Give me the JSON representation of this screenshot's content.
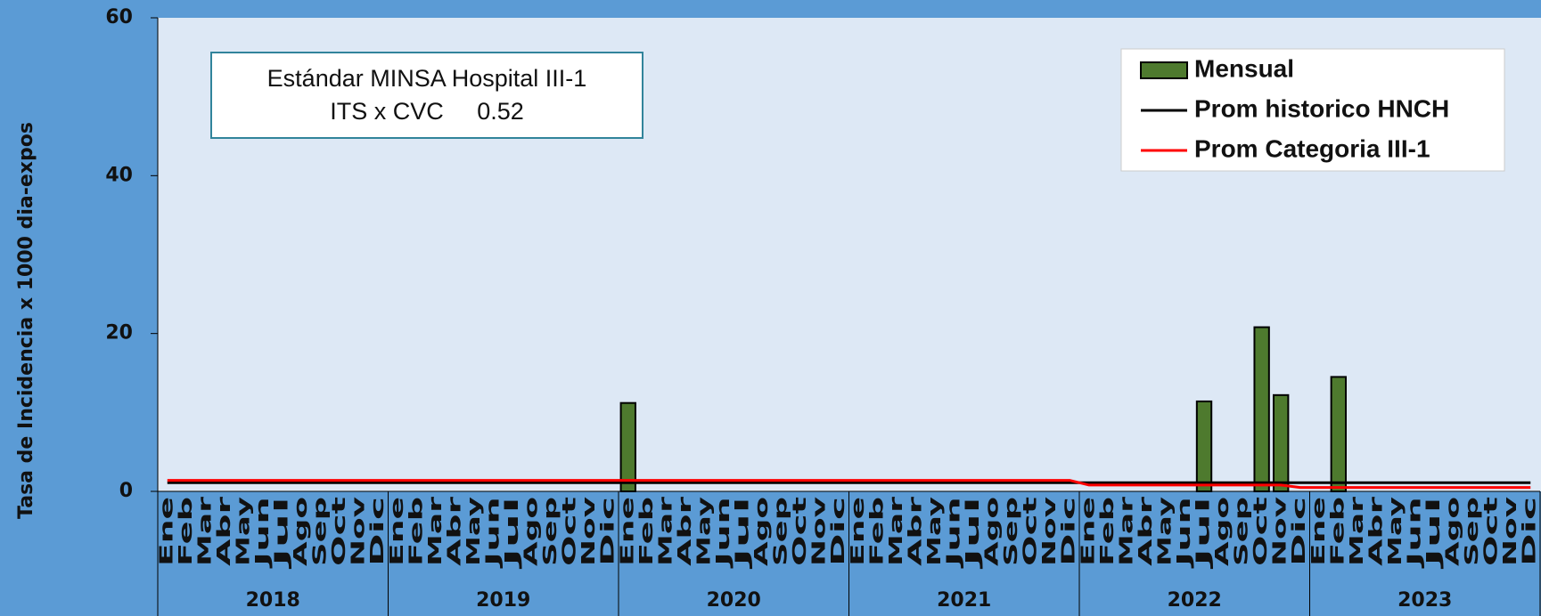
{
  "chart_data": {
    "type": "bar",
    "ylabel": "Tasa de Incidencia x 1000 dia-expos",
    "annotation": [
      "Estándar MINSA Hospital III-1",
      "ITS x CVC     0.52"
    ],
    "categories": [
      "Ene",
      "Feb",
      "Mar",
      "Abr",
      "May",
      "Jun",
      "Jul",
      "Ago",
      "Sep",
      "Oct",
      "Nov",
      "Dic",
      "Ene",
      "Feb",
      "Mar",
      "Abr",
      "May",
      "Jun",
      "Jul",
      "Ago",
      "Sep",
      "Oct",
      "Nov",
      "Dic",
      "Ene",
      "Feb",
      "Mar",
      "Abr",
      "May",
      "Jun",
      "Jul",
      "Ago",
      "Sep",
      "Oct",
      "Nov",
      "Dic",
      "Ene",
      "Feb",
      "Mar",
      "Abr",
      "May",
      "Jun",
      "Jul",
      "Ago",
      "Sep",
      "Oct",
      "Nov",
      "Dic",
      "Ene",
      "Feb",
      "Mar",
      "Abr",
      "May",
      "Jun",
      "Jul",
      "Ago",
      "Sep",
      "Oct",
      "Nov",
      "Dic",
      "Ene",
      "Feb",
      "Mar",
      "Abr",
      "May",
      "Jun",
      "Jul",
      "Ago",
      "Sep",
      "Oct",
      "Nov",
      "Dic"
    ],
    "years": [
      "2018",
      "2019",
      "2020",
      "2021",
      "2022",
      "2023"
    ],
    "series": [
      {
        "name": "Mensual",
        "type": "bar",
        "color": "#4e7a2e",
        "values": [
          0,
          0,
          0,
          0,
          0,
          0,
          0,
          0,
          0,
          0,
          0,
          0,
          0,
          0,
          0,
          0,
          0,
          0,
          0,
          0,
          0,
          0,
          0,
          0,
          11.2,
          0,
          0,
          0,
          0,
          0,
          0,
          0,
          0,
          0,
          0,
          0,
          0,
          0,
          0,
          0,
          0,
          0,
          0,
          0,
          0,
          0,
          0,
          0,
          0,
          0,
          0,
          0,
          0,
          0,
          11.4,
          0,
          0,
          20.8,
          12.2,
          0,
          0,
          14.5,
          0,
          0,
          0,
          0,
          0,
          0,
          0,
          0,
          0,
          0
        ]
      },
      {
        "name": "Prom historico HNCH",
        "type": "line",
        "color": "#000000",
        "values": [
          1.1,
          1.1,
          1.1,
          1.1,
          1.1,
          1.1,
          1.1,
          1.1,
          1.1,
          1.1,
          1.1,
          1.1,
          1.1,
          1.1,
          1.1,
          1.1,
          1.1,
          1.1,
          1.1,
          1.1,
          1.1,
          1.1,
          1.1,
          1.1,
          1.1,
          1.1,
          1.1,
          1.1,
          1.1,
          1.1,
          1.1,
          1.1,
          1.1,
          1.1,
          1.1,
          1.1,
          1.1,
          1.1,
          1.1,
          1.1,
          1.1,
          1.1,
          1.1,
          1.1,
          1.1,
          1.1,
          1.1,
          1.1,
          1.1,
          1.1,
          1.1,
          1.1,
          1.1,
          1.1,
          1.1,
          1.1,
          1.1,
          1.1,
          1.1,
          1.1,
          1.1,
          1.1,
          1.1,
          1.1,
          1.1,
          1.1,
          1.1,
          1.1,
          1.1,
          1.1,
          1.1,
          1.1
        ]
      },
      {
        "name": "Prom Categoria III-1",
        "type": "line",
        "color": "#ff0000",
        "values": [
          1.4,
          1.4,
          1.4,
          1.4,
          1.4,
          1.4,
          1.4,
          1.4,
          1.4,
          1.4,
          1.4,
          1.4,
          1.4,
          1.4,
          1.4,
          1.4,
          1.4,
          1.4,
          1.4,
          1.4,
          1.4,
          1.4,
          1.4,
          1.4,
          1.4,
          1.4,
          1.4,
          1.4,
          1.4,
          1.4,
          1.4,
          1.4,
          1.4,
          1.4,
          1.4,
          1.4,
          1.4,
          1.4,
          1.4,
          1.4,
          1.4,
          1.4,
          1.4,
          1.4,
          1.4,
          1.4,
          1.4,
          1.4,
          0.8,
          0.8,
          0.8,
          0.8,
          0.8,
          0.8,
          0.8,
          0.8,
          0.8,
          0.8,
          0.8,
          0.5,
          0.5,
          0.5,
          0.5,
          0.5,
          0.5,
          0.5,
          0.5,
          0.5,
          0.5,
          0.5,
          0.5,
          0.5
        ]
      }
    ],
    "ylim": [
      0,
      60
    ],
    "yticks": [
      0,
      20,
      40,
      60
    ],
    "legend": "top-right"
  }
}
